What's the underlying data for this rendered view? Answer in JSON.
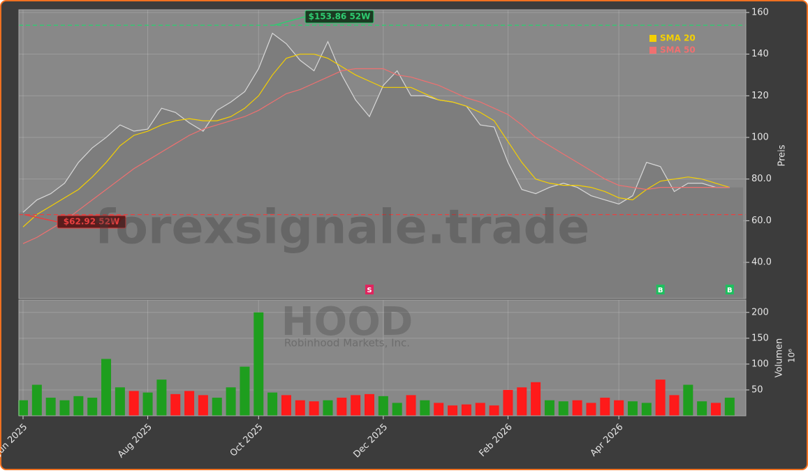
{
  "chart_data": [
    {
      "type": "area",
      "values": [
        64,
        70,
        73,
        78,
        88,
        95,
        100,
        106,
        103,
        104,
        114,
        112,
        107,
        103,
        113,
        117,
        122,
        133,
        150,
        145,
        137,
        132,
        146,
        130,
        118,
        110,
        125,
        132,
        120,
        120,
        118,
        117,
        115,
        106,
        105,
        88,
        75,
        73,
        76,
        78,
        76,
        72,
        70,
        68,
        72,
        88,
        86,
        74,
        78,
        78,
        76,
        76
      ],
      "color": "#8a8a8a",
      "series": [
        {
          "name": "SMA 20",
          "color": "#f5d000",
          "values": [
            57,
            63,
            67,
            71,
            75,
            81,
            88,
            96,
            101,
            103,
            106,
            108,
            109,
            108,
            108,
            110,
            114,
            120,
            130,
            138,
            140,
            140,
            138,
            134,
            130,
            127,
            124,
            124,
            124,
            121,
            118,
            117,
            115,
            112,
            108,
            98,
            88,
            80,
            78,
            77,
            77,
            76,
            74,
            71,
            70,
            75,
            79,
            80,
            81,
            80,
            78,
            76
          ]
        },
        {
          "name": "SMA 50",
          "color": "#f07070",
          "values": [
            49,
            52,
            56,
            60,
            65,
            70,
            75,
            80,
            85,
            89,
            93,
            97,
            101,
            104,
            106,
            108,
            110,
            113,
            117,
            121,
            123,
            126,
            129,
            132,
            133,
            133,
            133,
            130,
            129,
            127,
            125,
            122,
            119,
            117,
            114,
            111,
            106,
            100,
            96,
            92,
            88,
            84,
            80,
            77,
            76,
            75,
            76,
            76,
            76,
            76,
            76,
            76
          ]
        }
      ],
      "high": {
        "value": 153.86,
        "label": "$153.86 52W",
        "color": "#2ecc71"
      },
      "low": {
        "value": 62.92,
        "label": "$62.92 52W",
        "color": "#e84040"
      },
      "signals": [
        null,
        null,
        null,
        null,
        null,
        null,
        null,
        null,
        null,
        null,
        null,
        null,
        null,
        null,
        null,
        null,
        null,
        null,
        null,
        null,
        null,
        null,
        null,
        null,
        null,
        "S",
        null,
        null,
        null,
        null,
        null,
        null,
        null,
        null,
        null,
        null,
        null,
        null,
        null,
        null,
        null,
        null,
        null,
        null,
        null,
        null,
        "B",
        null,
        null,
        null,
        null,
        "B"
      ],
      "ylabel": "Preis",
      "ylim": [
        22.6,
        161.3
      ],
      "yticks": [
        {
          "value": 40,
          "label": "40.0"
        },
        {
          "value": 60,
          "label": "60.0"
        },
        {
          "value": 80,
          "label": "80.0"
        },
        {
          "value": 100,
          "label": "100"
        },
        {
          "value": 120,
          "label": "120"
        },
        {
          "value": 140,
          "label": "140"
        },
        {
          "value": 160,
          "label": "160"
        }
      ],
      "grid": true,
      "legend": "top-right",
      "watermark": "forexsignale.trade"
    },
    {
      "type": "bar",
      "categories": [
        "Jun 2025",
        null,
        null,
        null,
        null,
        null,
        null,
        null,
        null,
        "Aug 2025",
        null,
        null,
        null,
        null,
        null,
        null,
        null,
        "Oct 2025",
        null,
        null,
        null,
        null,
        null,
        null,
        null,
        null,
        "Dec 2025",
        null,
        null,
        null,
        null,
        null,
        null,
        null,
        null,
        "Feb 2026",
        null,
        null,
        null,
        null,
        null,
        null,
        null,
        "Apr 2026",
        null,
        null,
        null,
        null,
        null,
        null,
        null,
        null
      ],
      "values": [
        30,
        60,
        35,
        30,
        38,
        35,
        110,
        55,
        48,
        45,
        70,
        42,
        48,
        40,
        35,
        55,
        95,
        200,
        45,
        40,
        30,
        28,
        30,
        35,
        40,
        42,
        38,
        25,
        40,
        30,
        25,
        20,
        22,
        25,
        20,
        50,
        55,
        65,
        30,
        28,
        30,
        25,
        35,
        30,
        28,
        25,
        70,
        40,
        60,
        28,
        25,
        35
      ],
      "up_color": "#1e9e1e",
      "down_color": "#ff1a1a",
      "ylabel": "Volumen",
      "unit": "10⁶",
      "ylim": [
        0,
        224
      ],
      "yticks": [
        50,
        100,
        150,
        200
      ],
      "title": "HOOD",
      "subtitle": "Robinhood Markets, Inc."
    }
  ]
}
